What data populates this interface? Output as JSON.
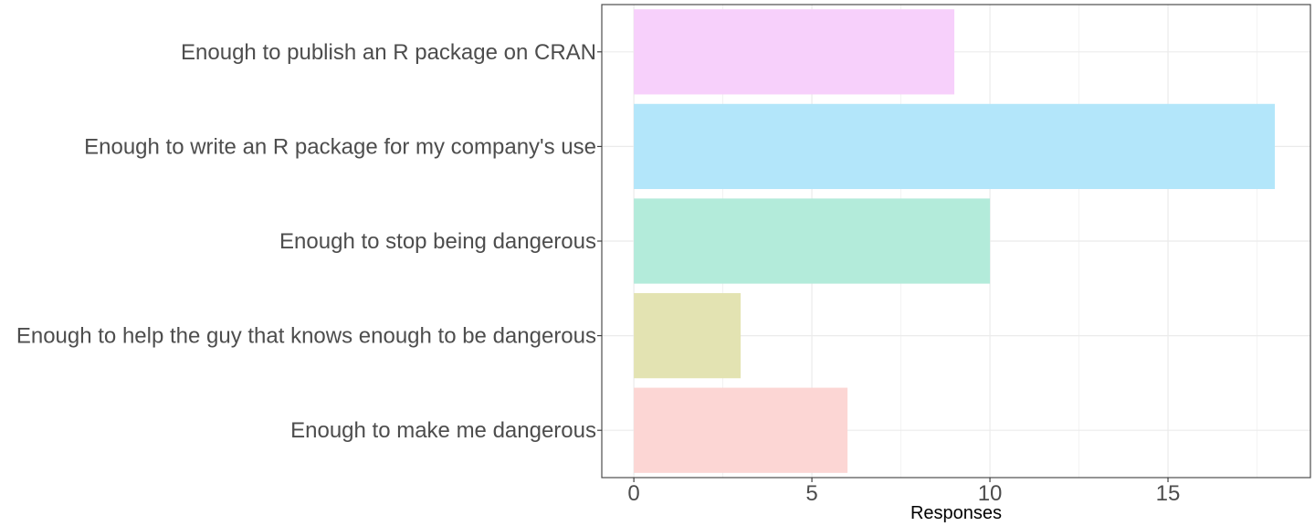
{
  "chart_data": {
    "type": "bar",
    "orientation": "horizontal",
    "categories": [
      "Enough to publish an R package on CRAN",
      "Enough to write an R package for my company's use",
      "Enough to stop being dangerous",
      "Enough to help the guy that knows enough to be dangerous",
      "Enough to make me dangerous"
    ],
    "values": [
      9,
      18,
      10,
      3,
      6
    ],
    "colors": [
      "#f7d0fb",
      "#b3e6fa",
      "#b3ebda",
      "#e3e3b2",
      "#fcd6d4"
    ],
    "xlabel": "Responses",
    "ylabel": "",
    "title": "",
    "xlim": [
      -0.9,
      19.0
    ],
    "x_ticks": [
      0,
      5,
      10,
      15
    ],
    "x_tick_labels": [
      "0",
      "5",
      "10",
      "15"
    ],
    "grid": true,
    "legend": "none"
  }
}
